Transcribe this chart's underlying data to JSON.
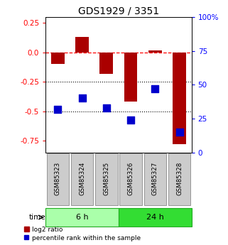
{
  "title": "GDS1929 / 3351",
  "samples": [
    "GSM85323",
    "GSM85324",
    "GSM85325",
    "GSM85326",
    "GSM85327",
    "GSM85328"
  ],
  "log2_ratio": [
    -0.1,
    0.13,
    -0.18,
    -0.42,
    0.02,
    -0.78
  ],
  "percentile_rank": [
    32,
    40,
    33,
    24,
    47,
    15
  ],
  "groups": [
    {
      "label": "6 h",
      "indices": [
        0,
        1,
        2
      ],
      "color": "#aaffaa"
    },
    {
      "label": "24 h",
      "indices": [
        3,
        4,
        5
      ],
      "color": "#33dd33"
    }
  ],
  "ylim_left": [
    -0.85,
    0.3
  ],
  "ylim_right": [
    0,
    100
  ],
  "left_ticks": [
    0.25,
    0.0,
    -0.25,
    -0.5,
    -0.75
  ],
  "right_ticks": [
    100,
    75,
    50,
    25,
    0
  ],
  "hline_dashed": 0.0,
  "hlines_dotted": [
    -0.25,
    -0.5
  ],
  "bar_color": "#aa0000",
  "dot_color": "#0000cc",
  "bar_width": 0.55,
  "dot_size": 45,
  "background_color": "#ffffff",
  "label_log2": "log2 ratio",
  "label_pct": "percentile rank within the sample",
  "time_label": "time",
  "figsize": [
    3.21,
    3.45
  ],
  "dpi": 100,
  "sample_box_color": "#cccccc",
  "sample_box_edge": "#888888"
}
